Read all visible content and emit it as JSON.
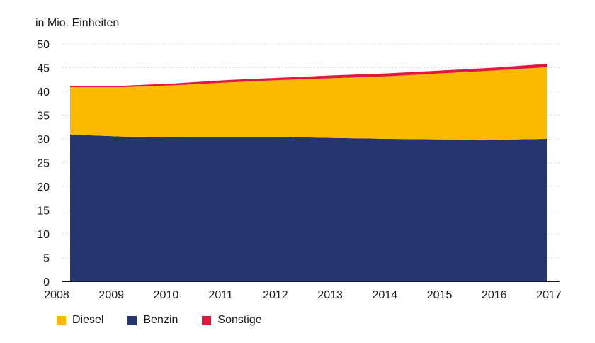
{
  "chart_data": {
    "type": "area",
    "stacked": true,
    "unit_label": "in Mio. Einheiten",
    "x": [
      "2008",
      "2009",
      "2010",
      "2011",
      "2012",
      "2013",
      "2014",
      "2015",
      "2016",
      "2017"
    ],
    "ylim": [
      0,
      50
    ],
    "yticks": [
      0,
      5,
      10,
      15,
      20,
      25,
      30,
      35,
      40,
      45,
      50
    ],
    "grid": true,
    "legend_position": "bottom-left",
    "series": [
      {
        "name": "Benzin",
        "color": "#27356f",
        "values": [
          30.9,
          30.5,
          30.4,
          30.4,
          30.4,
          30.2,
          30.0,
          29.9,
          29.8,
          30.0
        ]
      },
      {
        "name": "Diesel",
        "color": "#fbba00",
        "values": [
          10.0,
          10.4,
          10.9,
          11.5,
          12.0,
          12.6,
          13.2,
          13.9,
          14.6,
          15.1
        ]
      },
      {
        "name": "Sonstige",
        "color": "#e3173e",
        "values": [
          0.3,
          0.3,
          0.4,
          0.5,
          0.5,
          0.6,
          0.6,
          0.6,
          0.6,
          0.7
        ]
      }
    ],
    "legend_order": [
      "Diesel",
      "Benzin",
      "Sonstige"
    ]
  }
}
